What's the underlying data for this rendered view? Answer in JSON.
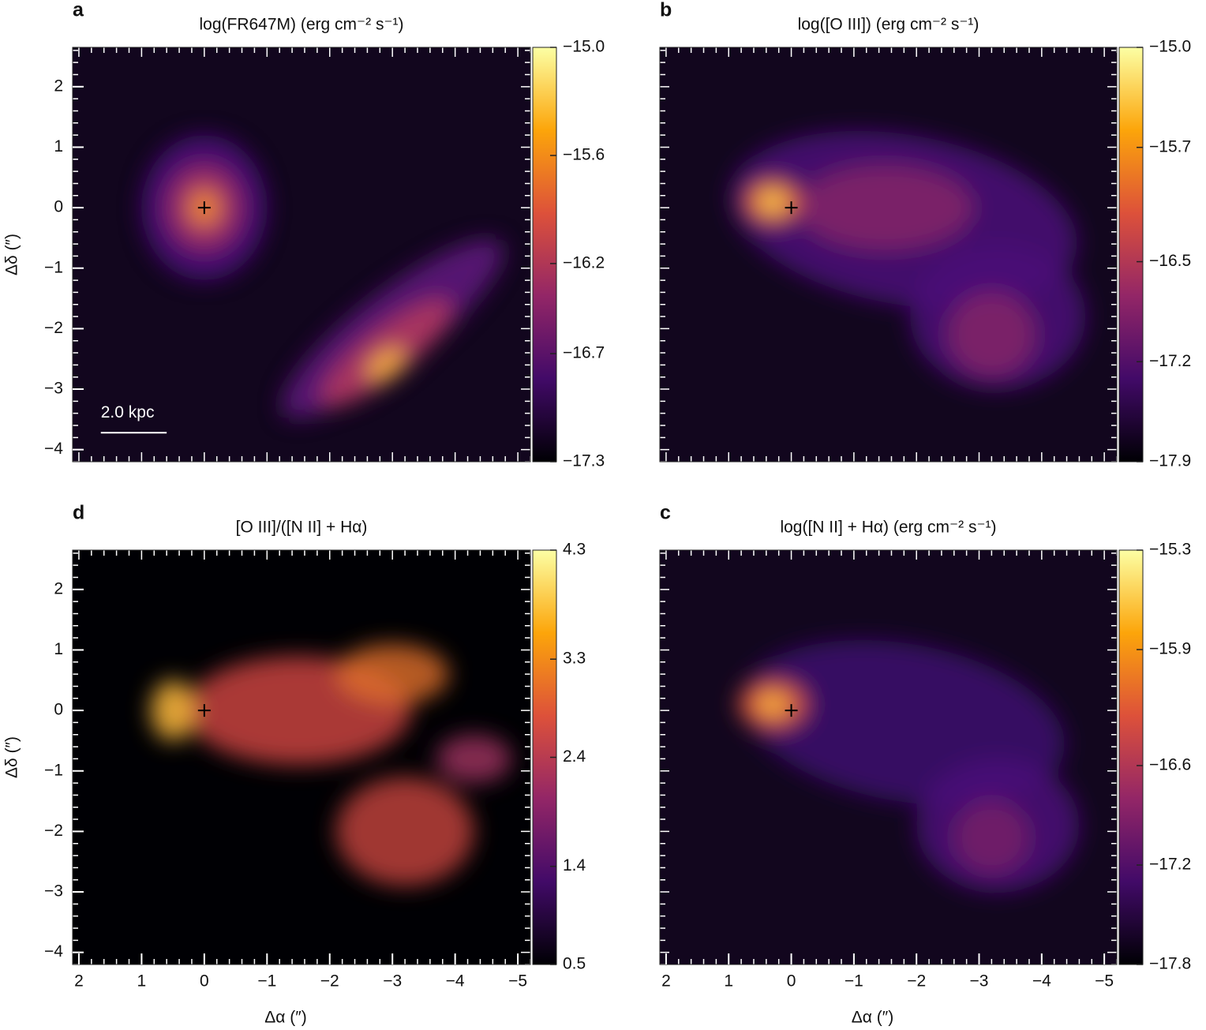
{
  "chart_data": [
    {
      "type": "image",
      "label": "a",
      "title": "log(FR647M) (erg cm⁻² s⁻¹)",
      "colormap": "inferno",
      "xlim": [
        2.1,
        -5.2
      ],
      "ylim": [
        -4.2,
        2.65
      ],
      "yticks": [
        2,
        1,
        0,
        {
          "value": -1,
          "label": "−1"
        },
        {
          "value": -2,
          "label": "−2"
        },
        {
          "value": -3,
          "label": "−3"
        },
        {
          "value": -4,
          "label": "−4"
        }
      ],
      "ylabel": "Δδ (″)",
      "annotation": "2.0 kpc",
      "clim": [
        -17.3,
        -15.0
      ],
      "cticks": [
        {
          "value": -15.0,
          "label": "−15.0"
        },
        {
          "value": -15.6,
          "label": "−15.6"
        },
        {
          "value": -16.2,
          "label": "−16.2"
        },
        {
          "value": -16.7,
          "label": "−16.7"
        },
        {
          "value": -17.3,
          "label": "−17.3"
        }
      ]
    },
    {
      "type": "image",
      "label": "b",
      "title": "log([O III]) (erg cm⁻² s⁻¹)",
      "colormap": "inferno",
      "xlim": [
        2.1,
        -5.2
      ],
      "ylim": [
        -4.2,
        2.65
      ],
      "clim": [
        -17.9,
        -15.0
      ],
      "cticks": [
        {
          "value": -15.0,
          "label": "−15.0"
        },
        {
          "value": -15.7,
          "label": "−15.7"
        },
        {
          "value": -16.5,
          "label": "−16.5"
        },
        {
          "value": -17.2,
          "label": "−17.2"
        },
        {
          "value": -17.9,
          "label": "−17.9"
        }
      ]
    },
    {
      "type": "image",
      "label": "d",
      "title": "[O III]/([N II] + Hα)",
      "colormap": "inferno",
      "xlim": [
        2.1,
        -5.2
      ],
      "ylim": [
        -4.2,
        2.65
      ],
      "xticks": [
        2,
        1,
        0,
        {
          "value": -1,
          "label": "−1"
        },
        {
          "value": -2,
          "label": "−2"
        },
        {
          "value": -3,
          "label": "−3"
        },
        {
          "value": -4,
          "label": "−4"
        },
        {
          "value": -5,
          "label": "−5"
        }
      ],
      "yticks": [
        2,
        1,
        0,
        {
          "value": -1,
          "label": "−1"
        },
        {
          "value": -2,
          "label": "−2"
        },
        {
          "value": -3,
          "label": "−3"
        },
        {
          "value": -4,
          "label": "−4"
        }
      ],
      "xlabel": "Δα (″)",
      "ylabel": "Δδ (″)",
      "clim": [
        0.5,
        4.3
      ],
      "cticks": [
        4.3,
        3.3,
        2.4,
        1.4,
        0.5
      ]
    },
    {
      "type": "image",
      "label": "c",
      "title": "log([N II] + Hα) (erg cm⁻² s⁻¹)",
      "colormap": "inferno",
      "xlim": [
        2.1,
        -5.2
      ],
      "ylim": [
        -4.2,
        2.65
      ],
      "xticks": [
        2,
        1,
        0,
        {
          "value": -1,
          "label": "−1"
        },
        {
          "value": -2,
          "label": "−2"
        },
        {
          "value": -3,
          "label": "−3"
        },
        {
          "value": -4,
          "label": "−4"
        },
        {
          "value": -5,
          "label": "−5"
        }
      ],
      "xlabel": "Δα (″)",
      "clim": [
        -17.8,
        -15.3
      ],
      "cticks": [
        {
          "value": -15.3,
          "label": "−15.3"
        },
        {
          "value": -15.9,
          "label": "−15.9"
        },
        {
          "value": -16.6,
          "label": "−16.6"
        },
        {
          "value": -17.2,
          "label": "−17.2"
        },
        {
          "value": -17.8,
          "label": "−17.8"
        }
      ]
    }
  ]
}
